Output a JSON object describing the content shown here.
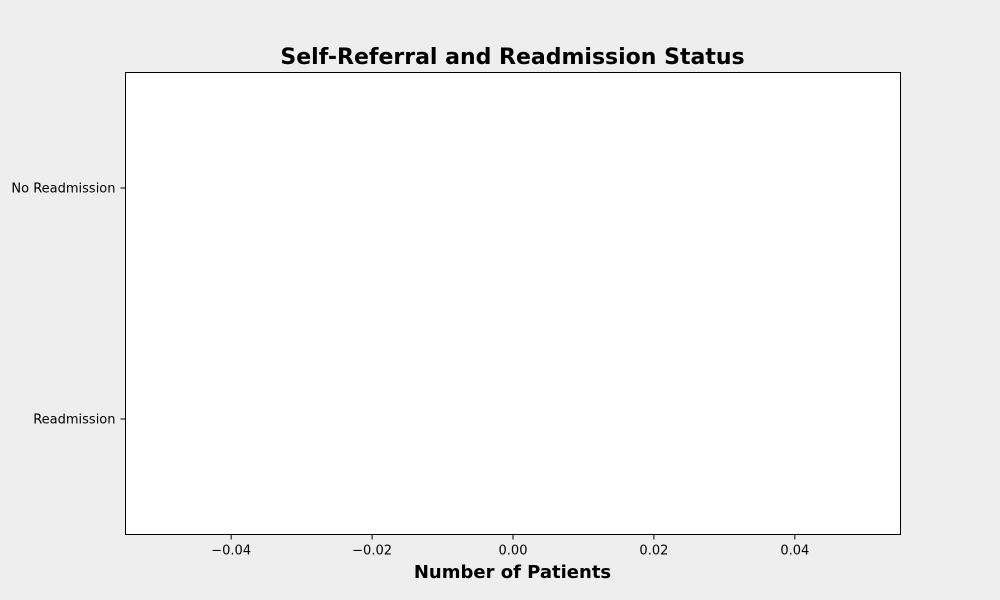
{
  "chart_data": {
    "type": "bar",
    "orientation": "horizontal",
    "title": "Self-Referral and Readmission Status",
    "xlabel": "Number of Patients",
    "ylabel": "",
    "categories": [
      "No Readmission",
      "Readmission"
    ],
    "series": [
      {
        "values": [
          0,
          0
        ]
      }
    ],
    "xlim": [
      -0.055,
      0.055
    ],
    "x_ticks": [
      -0.04,
      -0.02,
      0.0,
      0.02,
      0.04
    ],
    "x_tick_labels": [
      "−0.04",
      "−0.02",
      "0.00",
      "0.02",
      "0.04"
    ],
    "grid": false,
    "legend": "none",
    "colors": {
      "figure_background": "#eeeeee",
      "plot_background": "#ffffff",
      "axis_color": "#000000"
    }
  }
}
